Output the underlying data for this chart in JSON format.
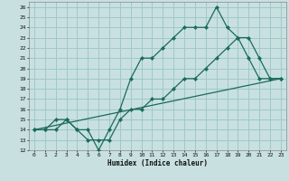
{
  "xlabel": "Humidex (Indice chaleur)",
  "bg_color": "#c8e0e0",
  "grid_color": "#a0c8c8",
  "line_color": "#1a6b5a",
  "xlim": [
    -0.5,
    23.5
  ],
  "ylim": [
    12,
    26.5
  ],
  "xticks": [
    0,
    1,
    2,
    3,
    4,
    5,
    6,
    7,
    8,
    9,
    10,
    11,
    12,
    13,
    14,
    15,
    16,
    17,
    18,
    19,
    20,
    21,
    22,
    23
  ],
  "yticks": [
    12,
    13,
    14,
    15,
    16,
    17,
    18,
    19,
    20,
    21,
    22,
    23,
    24,
    25,
    26
  ],
  "series1_x": [
    0,
    1,
    2,
    3,
    4,
    5,
    6,
    7,
    8,
    9,
    10,
    11,
    12,
    13,
    14,
    15,
    16,
    17,
    18,
    19,
    20,
    21,
    22,
    23
  ],
  "series1_y": [
    14,
    14,
    14,
    15,
    14,
    14,
    12,
    14,
    16,
    19,
    21,
    21,
    22,
    23,
    24,
    24,
    24,
    26,
    24,
    23,
    21,
    19,
    19,
    19
  ],
  "series2_x": [
    0,
    1,
    2,
    3,
    4,
    5,
    6,
    7,
    8,
    9,
    10,
    11,
    12,
    13,
    14,
    15,
    16,
    17,
    18,
    19,
    20,
    21,
    22,
    23
  ],
  "series2_y": [
    14,
    14,
    15,
    15,
    14,
    13,
    13,
    13,
    15,
    16,
    16,
    17,
    17,
    18,
    19,
    19,
    20,
    21,
    22,
    23,
    23,
    21,
    19,
    19
  ],
  "series3_x": [
    0,
    23
  ],
  "series3_y": [
    14,
    19
  ]
}
